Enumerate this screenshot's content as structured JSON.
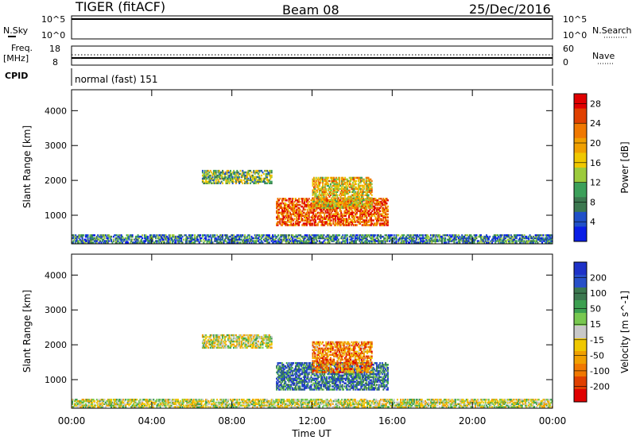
{
  "header": {
    "radar": "TIGER (fitACF)",
    "beam": "Beam 08",
    "date": "25/Dec/2016"
  },
  "top_panels": {
    "nsky_label": "N.Sky",
    "nsky_ticks": [
      "10^5",
      "10^0"
    ],
    "nsearch_label": "N.Search",
    "freq_label": "Freq.",
    "freq_unit": "[MHz]",
    "freq_ticks": [
      "18",
      "8"
    ],
    "nave_label": "Nave",
    "nave_ticks": [
      "60",
      "0"
    ],
    "cpid_label": "CPID",
    "cpid_value": "normal (fast) 151"
  },
  "chart_data": [
    {
      "type": "heatmap",
      "name": "power-panel",
      "ylabel": "Slant Range [km]",
      "xlabel": "Time UT",
      "x_ticks": [
        "00:00",
        "04:00",
        "08:00",
        "12:00",
        "16:00",
        "20:00",
        "00:00"
      ],
      "y_ticks": [
        1000,
        2000,
        3000,
        4000
      ],
      "ylim": [
        180,
        4600
      ],
      "xlim_hours": [
        0,
        24
      ],
      "colorbar": {
        "label": "Power [dB]",
        "ticks": [
          "4",
          "8",
          "12",
          "16",
          "20",
          "24",
          "28"
        ],
        "range": [
          0,
          30
        ],
        "colors": [
          "#0a1ee6",
          "#2050c8",
          "#3c7850",
          "#3ca05a",
          "#9ccb3c",
          "#f0c800",
          "#f0a000",
          "#f07800",
          "#e04000",
          "#e00000"
        ]
      },
      "regions": [
        {
          "t0": 0.0,
          "t1": 24.0,
          "r0": 200,
          "r1": 450,
          "level": 0.25
        },
        {
          "t0": 6.5,
          "t1": 10.0,
          "r0": 1900,
          "r1": 2300,
          "level": 0.4
        },
        {
          "t0": 10.2,
          "t1": 15.8,
          "r0": 700,
          "r1": 1500,
          "level": 0.8
        },
        {
          "t0": 12.0,
          "t1": 15.0,
          "r0": 1200,
          "r1": 2100,
          "level": 0.6
        }
      ]
    },
    {
      "type": "heatmap",
      "name": "velocity-panel",
      "ylabel": "Slant Range [km]",
      "xlabel": "Time UT",
      "x_ticks": [
        "00:00",
        "04:00",
        "08:00",
        "12:00",
        "16:00",
        "20:00",
        "00:00"
      ],
      "y_ticks": [
        1000,
        2000,
        3000,
        4000
      ],
      "ylim": [
        180,
        4600
      ],
      "xlim_hours": [
        0,
        24
      ],
      "colorbar": {
        "label": "Velocity [m s^-1]",
        "ticks": [
          "200",
          "100",
          "50",
          "15",
          "-15",
          "-50",
          "-100",
          "-200"
        ],
        "range": [
          -250,
          250
        ],
        "colors": [
          "#1e32c8",
          "#2850c8",
          "#3c7850",
          "#3ca050",
          "#78c850",
          "#c8c8c8",
          "#f0c800",
          "#f0a000",
          "#f07800",
          "#e04000",
          "#e00000"
        ]
      },
      "regions": [
        {
          "t0": 0.0,
          "t1": 24.0,
          "r0": 200,
          "r1": 450,
          "level": 0.0
        },
        {
          "t0": 6.5,
          "t1": 10.0,
          "r0": 1900,
          "r1": 2300,
          "level": 0.0
        },
        {
          "t0": 10.2,
          "t1": 15.8,
          "r0": 700,
          "r1": 1500,
          "level": 150
        },
        {
          "t0": 12.0,
          "t1": 15.0,
          "r0": 1200,
          "r1": 2100,
          "level": -120
        }
      ]
    }
  ]
}
